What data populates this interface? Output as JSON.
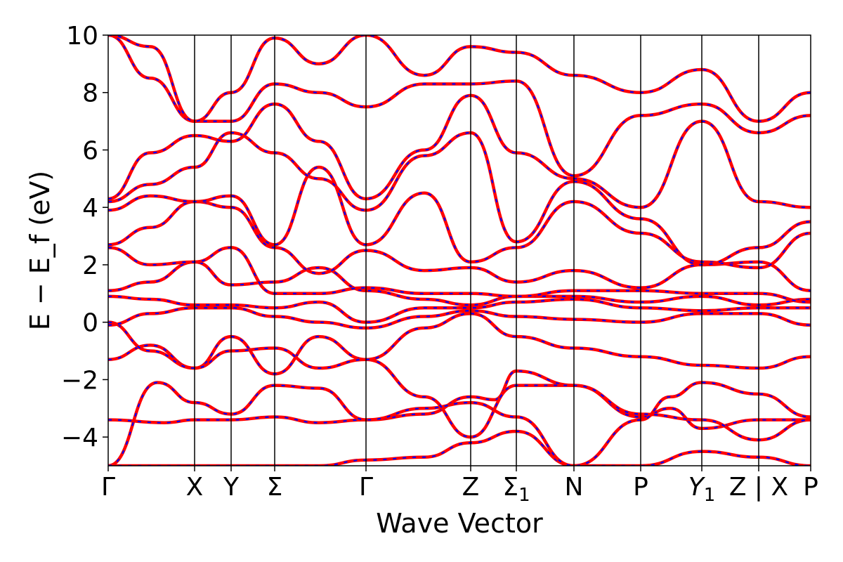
{
  "chart_data": {
    "type": "line",
    "title": "",
    "xlabel": "Wave Vector",
    "ylabel": "E − E_f (eV)",
    "ylim": [
      -5,
      10
    ],
    "yticks": [
      -4,
      -2,
      0,
      2,
      4,
      6,
      8,
      10
    ],
    "ytick_labels": [
      "−4",
      "−2",
      "0",
      "2",
      "4",
      "6",
      "8",
      "10"
    ],
    "x_is_path": true,
    "xlim": [
      0,
      1
    ],
    "kpoints": [
      {
        "label": "Γ",
        "x": 0.0
      },
      {
        "label": "X",
        "x": 0.123
      },
      {
        "label": "Y",
        "x": 0.175
      },
      {
        "label": "Σ",
        "x": 0.237
      },
      {
        "label": "Γ",
        "x": 0.367
      },
      {
        "label": "Z",
        "x": 0.516
      },
      {
        "label": "Σ",
        "sub": "1",
        "x": 0.581
      },
      {
        "label": "N",
        "x": 0.663
      },
      {
        "label": "P",
        "x": 0.758
      },
      {
        "label": "Y",
        "sub": "1",
        "italic": true,
        "x": 0.845
      },
      {
        "label": "Z | X",
        "x": 0.926
      },
      {
        "label": "P",
        "x": 1.0
      }
    ],
    "style": {
      "overlay_color": "#ff0000",
      "base_color": "#0000ff",
      "vline_color": "#000000",
      "grid": false,
      "legend": "none"
    },
    "series": [
      {
        "x": [
          0,
          0.12,
          0.175,
          0.237,
          0.3,
          0.367,
          0.45,
          0.516,
          0.581,
          0.663,
          0.758,
          0.845,
          0.926,
          1.0
        ],
        "y": [
          -5,
          -5,
          -5,
          -5,
          -5,
          -4.8,
          -4.7,
          -4.2,
          -3.8,
          -5,
          -5,
          -4.5,
          -4.7,
          -5
        ]
      },
      {
        "x": [
          0,
          0.08,
          0.123,
          0.175,
          0.237,
          0.3,
          0.367,
          0.45,
          0.516,
          0.55,
          0.581,
          0.663,
          0.758,
          0.8,
          0.845,
          0.926,
          1.0
        ],
        "y": [
          -3.4,
          -3.5,
          -3.4,
          -3.4,
          -3.3,
          -3.5,
          -3.4,
          -3.2,
          -2.6,
          -2.7,
          -1.7,
          -2.2,
          -3.3,
          -3.0,
          -3.7,
          -3.4,
          -3.4
        ]
      },
      {
        "x": [
          0,
          0.07,
          0.123,
          0.175,
          0.237,
          0.3,
          0.367,
          0.45,
          0.516,
          0.581,
          0.663,
          0.758,
          0.8,
          0.845,
          0.926,
          1.0
        ],
        "y": [
          -5,
          -2.1,
          -2.8,
          -3.2,
          -2.2,
          -2.3,
          -3.4,
          -3.0,
          -2.8,
          -3.3,
          -5,
          -3.4,
          -2.6,
          -2.1,
          -2.5,
          -3.3
        ]
      },
      {
        "x": [
          0,
          0.06,
          0.123,
          0.175,
          0.237,
          0.3,
          0.367,
          0.45,
          0.516,
          0.581,
          0.663,
          0.758,
          0.845,
          0.926,
          1.0
        ],
        "y": [
          -1.3,
          -0.8,
          -1.6,
          -0.5,
          -1.8,
          -0.5,
          -1.3,
          -2.6,
          -4.0,
          -2.2,
          -2.2,
          -3.2,
          -3.4,
          -4.1,
          -3.4
        ]
      },
      {
        "x": [
          0,
          0.06,
          0.123,
          0.175,
          0.237,
          0.3,
          0.367,
          0.45,
          0.516,
          0.581,
          0.663,
          0.758,
          0.845,
          0.926,
          1.0
        ],
        "y": [
          0,
          -1.0,
          -1.6,
          -1.0,
          -0.9,
          -1.6,
          -1.3,
          -0.2,
          0.3,
          -0.5,
          -0.9,
          -1.2,
          -1.5,
          -1.6,
          -1.2
        ]
      },
      {
        "x": [
          0,
          0.06,
          0.123,
          0.175,
          0.237,
          0.3,
          0.367,
          0.45,
          0.516,
          0.581,
          0.663,
          0.758,
          0.845,
          0.926,
          1.0
        ],
        "y": [
          -0.1,
          0.3,
          0.5,
          0.5,
          0.2,
          0.0,
          -0.2,
          0.2,
          0.4,
          0.2,
          0.1,
          0.0,
          0.3,
          0.3,
          -0.1
        ]
      },
      {
        "x": [
          0,
          0.06,
          0.123,
          0.175,
          0.237,
          0.3,
          0.367,
          0.45,
          0.516,
          0.581,
          0.663,
          0.758,
          0.845,
          0.926,
          1.0
        ],
        "y": [
          0.9,
          0.8,
          0.6,
          0.6,
          0.5,
          0.7,
          0.0,
          0.5,
          0.5,
          0.7,
          0.8,
          0.5,
          0.4,
          0.5,
          0.5
        ]
      },
      {
        "x": [
          0,
          0.06,
          0.123,
          0.175,
          0.237,
          0.3,
          0.367,
          0.45,
          0.516,
          0.581,
          0.663,
          0.758,
          0.845,
          0.926,
          1.0
        ],
        "y": [
          1.1,
          1.4,
          2.1,
          1.3,
          1.4,
          1.9,
          1.1,
          0.8,
          0.6,
          0.9,
          0.9,
          0.7,
          0.9,
          0.6,
          0.8
        ]
      },
      {
        "x": [
          0,
          0.06,
          0.123,
          0.175,
          0.237,
          0.3,
          0.367,
          0.45,
          0.516,
          0.581,
          0.663,
          0.758,
          0.845,
          0.926,
          1.0
        ],
        "y": [
          2.6,
          2.0,
          2.1,
          2.6,
          1.0,
          1.0,
          1.2,
          1.0,
          1.0,
          0.9,
          1.1,
          1.1,
          1.0,
          1.0,
          0.7
        ]
      },
      {
        "x": [
          0,
          0.06,
          0.123,
          0.175,
          0.237,
          0.3,
          0.367,
          0.45,
          0.516,
          0.581,
          0.663,
          0.758,
          0.845,
          0.926,
          1.0
        ],
        "y": [
          2.7,
          3.3,
          4.2,
          4.0,
          2.6,
          1.7,
          2.5,
          1.8,
          1.9,
          1.4,
          1.8,
          1.2,
          2.0,
          2.1,
          1.1
        ]
      },
      {
        "x": [
          0,
          0.06,
          0.123,
          0.175,
          0.237,
          0.3,
          0.367,
          0.45,
          0.516,
          0.581,
          0.663,
          0.758,
          0.845,
          0.926,
          1.0
        ],
        "y": [
          3.9,
          4.4,
          4.2,
          4.4,
          2.7,
          5.4,
          2.7,
          4.5,
          2.1,
          2.6,
          4.2,
          3.1,
          2.1,
          1.9,
          3.1
        ]
      },
      {
        "x": [
          0,
          0.06,
          0.123,
          0.175,
          0.237,
          0.3,
          0.367,
          0.45,
          0.516,
          0.581,
          0.663,
          0.758,
          0.845,
          0.926,
          1.0
        ],
        "y": [
          4.2,
          4.8,
          5.4,
          6.6,
          5.9,
          5.0,
          3.9,
          5.8,
          6.6,
          2.8,
          4.9,
          3.6,
          2.0,
          2.6,
          3.5
        ]
      },
      {
        "x": [
          0,
          0.06,
          0.123,
          0.175,
          0.237,
          0.3,
          0.367,
          0.45,
          0.516,
          0.581,
          0.663,
          0.758,
          0.845,
          0.926,
          1.0
        ],
        "y": [
          4.3,
          5.9,
          6.5,
          6.3,
          7.6,
          6.3,
          4.3,
          6.0,
          7.9,
          5.9,
          5.0,
          4.0,
          7.0,
          4.2,
          4.0
        ]
      },
      {
        "x": [
          0,
          0.06,
          0.123,
          0.175,
          0.237,
          0.3,
          0.367,
          0.45,
          0.516,
          0.581,
          0.663,
          0.758,
          0.845,
          0.926,
          1.0
        ],
        "y": [
          10,
          8.5,
          7.0,
          7.0,
          8.3,
          8.0,
          7.5,
          8.3,
          8.3,
          8.4,
          5.1,
          7.2,
          7.6,
          6.6,
          7.2
        ]
      },
      {
        "x": [
          0,
          0.06,
          0.123,
          0.175,
          0.237,
          0.3,
          0.367,
          0.45,
          0.516,
          0.581,
          0.663,
          0.758,
          0.845,
          0.926,
          1.0
        ],
        "y": [
          10,
          9.6,
          7.0,
          8.0,
          9.9,
          9.0,
          10,
          8.6,
          9.6,
          9.4,
          8.6,
          8.0,
          8.8,
          7.0,
          8.0
        ]
      }
    ]
  }
}
